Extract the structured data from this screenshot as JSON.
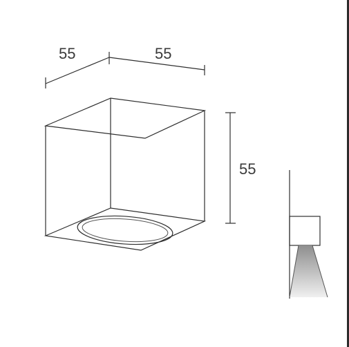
{
  "dimensions": {
    "width_left": "55",
    "width_right": "55",
    "height": "55"
  },
  "colors": {
    "line": "#2e2e2e",
    "text": "#3a3a3a",
    "beam_light": "#e6e6e6",
    "beam_dark": "#9a9a9a"
  }
}
